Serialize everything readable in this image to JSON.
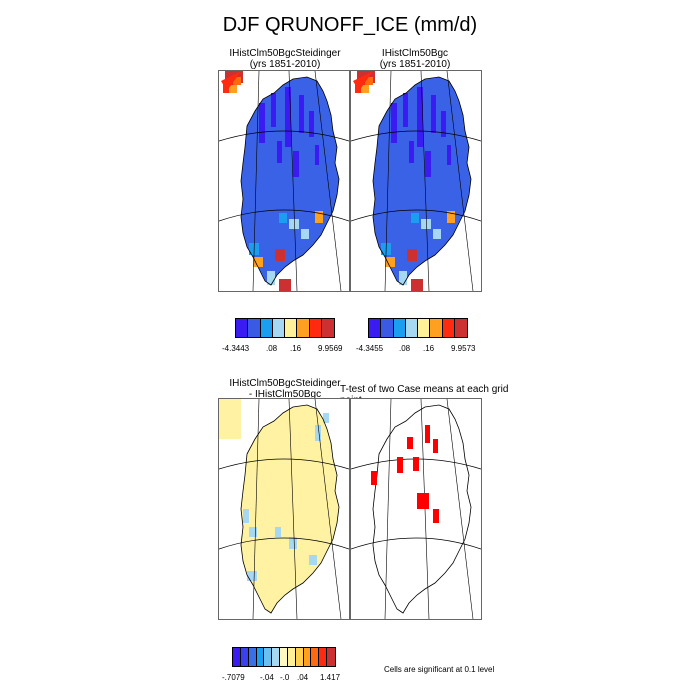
{
  "title": "DJF QRUNOFF_ICE (mm/d)",
  "panels": {
    "p1": {
      "line1": "IHistClm50BgcSteidinger",
      "line2": "(yrs 1851-2010)"
    },
    "p2": {
      "line1": "IHistClm50Bgc",
      "line2": "(yrs 1851-2010)"
    },
    "p3": {
      "line1": "IHistClm50BgcSteidinger",
      "line2": "- IHistClm50Bgc"
    },
    "p4": {
      "line1": "T-test of two Case means at each grid point"
    }
  },
  "legends": {
    "l1": {
      "colors": [
        "#3a1cf2",
        "#3a5ae6",
        "#1c9ef0",
        "#a6d8f2",
        "#fff09a",
        "#ffa020",
        "#ff2a10",
        "#cc3030"
      ],
      "ticks": [
        "-4.3443",
        ".08",
        ".16",
        "9.9569"
      ]
    },
    "l2": {
      "colors": [
        "#3a1cf2",
        "#3a5ae6",
        "#1c9ef0",
        "#a6d8f2",
        "#fff09a",
        "#ffa020",
        "#ff2a10",
        "#cc3030"
      ],
      "ticks": [
        "-4.3455",
        ".08",
        ".16",
        "9.9573"
      ]
    },
    "l3": {
      "colors": [
        "#3a1cf2",
        "#3a40f0",
        "#3a70e6",
        "#1c9ef0",
        "#6cc0f0",
        "#a6d8f2",
        "#fff8c0",
        "#fff09a",
        "#ffd050",
        "#ffa020",
        "#ff6a10",
        "#ff2a10",
        "#cc3030"
      ],
      "ticks": [
        "-.7079",
        "-.04",
        "-.0",
        ".04",
        "1.417"
      ]
    }
  },
  "significance_note": "Cells are significant at 0.1 level",
  "colors": {
    "ice": "#3a62e6",
    "sig": "#ff0000",
    "diff": "#fff3a3"
  }
}
